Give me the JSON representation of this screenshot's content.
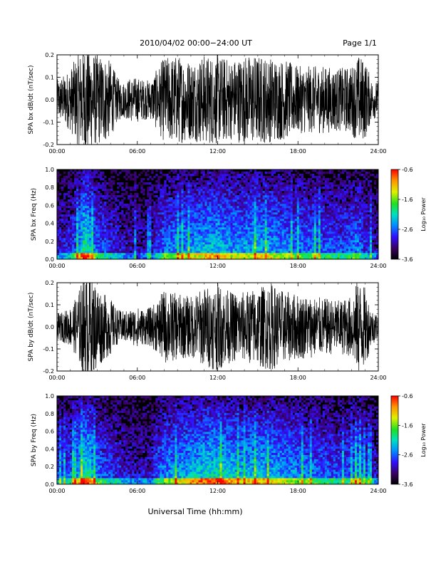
{
  "header": {
    "title": "2010/04/02  00:00−24:00 UT",
    "page": "Page 1/1"
  },
  "chart_data": [
    {
      "type": "line",
      "ylabel": "SPA bx dB/dt (nT/sec)",
      "xlim": [
        0,
        24
      ],
      "ylim": [
        -0.2,
        0.2
      ],
      "x_ticks": [
        "00:00",
        "06:00",
        "12:00",
        "18:00",
        "24:00"
      ],
      "y_ticks": [
        "-0.2",
        "-0.1",
        "0.0",
        "0.1",
        "0.2"
      ],
      "envelope": {
        "hours": [
          0,
          0.5,
          1,
          1.5,
          1.8,
          2.0,
          2.3,
          2.6,
          3.0,
          3.5,
          4.0,
          4.5,
          5.0,
          5.5,
          6.0,
          6.5,
          7.0,
          7.5,
          8.0,
          9.0,
          10.0,
          11.0,
          12.0,
          13.0,
          14.0,
          15.0,
          16.0,
          17.0,
          18.0,
          19.0,
          20.0,
          21.0,
          22.0,
          22.5,
          23.0,
          23.5,
          24.0
        ],
        "amplitude": [
          0.09,
          0.11,
          0.14,
          0.2,
          0.22,
          0.25,
          0.25,
          0.22,
          0.2,
          0.2,
          0.17,
          0.1,
          0.08,
          0.1,
          0.1,
          0.09,
          0.09,
          0.14,
          0.19,
          0.2,
          0.18,
          0.2,
          0.2,
          0.18,
          0.2,
          0.2,
          0.19,
          0.18,
          0.15,
          0.15,
          0.15,
          0.14,
          0.15,
          0.2,
          0.18,
          0.09,
          0.08
        ]
      },
      "color": "#000000"
    },
    {
      "type": "heatmap",
      "ylabel": "SPA bx Freq (Hz)",
      "xlim": [
        0,
        24
      ],
      "ylim": [
        0,
        1.0
      ],
      "x_ticks": [
        "00:00",
        "06:00",
        "12:00",
        "18:00",
        "24:00"
      ],
      "y_ticks": [
        "0.0",
        "0.2",
        "0.4",
        "0.6",
        "0.8",
        "1.0"
      ],
      "colorbar": {
        "label": "Log₁₀ Power",
        "range": [
          -3.6,
          -0.6
        ],
        "ticks": [
          "-0.6",
          "-1.6",
          "-2.6",
          "-3.6"
        ]
      },
      "activity_profile": {
        "hours": [
          0,
          0.5,
          1,
          1.5,
          2.0,
          2.3,
          2.6,
          3.0,
          4.0,
          5.0,
          6.0,
          7.0,
          7.5,
          8.0,
          9.0,
          10.0,
          11.0,
          12.0,
          13.0,
          14.0,
          15.0,
          16.0,
          17.0,
          18.0,
          19.0,
          20.0,
          21.0,
          22.0,
          22.5,
          23.0,
          24.0
        ],
        "level": [
          0.35,
          0.4,
          0.45,
          0.6,
          0.95,
          0.9,
          0.7,
          0.55,
          0.45,
          0.35,
          0.3,
          0.3,
          0.5,
          0.6,
          0.65,
          0.7,
          0.75,
          0.8,
          0.7,
          0.7,
          0.75,
          0.7,
          0.65,
          0.6,
          0.6,
          0.55,
          0.5,
          0.55,
          0.65,
          0.45,
          0.3
        ]
      }
    },
    {
      "type": "line",
      "ylabel": "SPA by dB/dt (nT/sec)",
      "xlim": [
        0,
        24
      ],
      "ylim": [
        -0.2,
        0.2
      ],
      "x_ticks": [
        "00:00",
        "06:00",
        "12:00",
        "18:00",
        "24:00"
      ],
      "y_ticks": [
        "-0.2",
        "-0.1",
        "0.0",
        "0.1",
        "0.2"
      ],
      "envelope": {
        "hours": [
          0,
          0.5,
          1,
          1.5,
          1.8,
          2.0,
          2.3,
          2.6,
          3.0,
          3.5,
          4.0,
          4.5,
          5.0,
          5.5,
          6.0,
          6.5,
          7.0,
          7.5,
          8.0,
          9.0,
          10.0,
          11.0,
          12.0,
          13.0,
          14.0,
          15.0,
          16.0,
          17.0,
          18.0,
          19.0,
          20.0,
          21.0,
          22.0,
          22.5,
          23.0,
          23.5,
          24.0
        ],
        "amplitude": [
          0.06,
          0.07,
          0.09,
          0.14,
          0.2,
          0.25,
          0.25,
          0.22,
          0.2,
          0.15,
          0.13,
          0.08,
          0.07,
          0.08,
          0.09,
          0.08,
          0.09,
          0.12,
          0.17,
          0.15,
          0.14,
          0.18,
          0.2,
          0.16,
          0.16,
          0.18,
          0.2,
          0.16,
          0.15,
          0.14,
          0.13,
          0.12,
          0.14,
          0.22,
          0.18,
          0.08,
          0.06
        ]
      },
      "color": "#000000"
    },
    {
      "type": "heatmap",
      "ylabel": "SPA by Freq (Hz)",
      "xlim": [
        0,
        24
      ],
      "ylim": [
        0,
        1.0
      ],
      "x_ticks": [
        "00:00",
        "06:00",
        "12:00",
        "18:00",
        "24:00"
      ],
      "y_ticks": [
        "0.0",
        "0.2",
        "0.4",
        "0.6",
        "0.8",
        "1.0"
      ],
      "xlabel": "Universal Time (hh:mm)",
      "colorbar": {
        "label": "Log₁₀ Power",
        "range": [
          -3.6,
          -0.6
        ],
        "ticks": [
          "-0.6",
          "-1.6",
          "-2.6",
          "-3.6"
        ]
      },
      "activity_profile": {
        "hours": [
          0,
          0.5,
          1,
          1.5,
          2.0,
          2.3,
          2.6,
          3.0,
          4.0,
          5.0,
          6.0,
          7.0,
          7.5,
          8.0,
          9.0,
          10.0,
          11.0,
          12.0,
          13.0,
          14.0,
          15.0,
          16.0,
          17.0,
          18.0,
          19.0,
          20.0,
          21.0,
          22.0,
          22.5,
          23.0,
          24.0
        ],
        "level": [
          0.45,
          0.5,
          0.55,
          0.7,
          0.95,
          0.95,
          0.8,
          0.6,
          0.5,
          0.4,
          0.35,
          0.35,
          0.55,
          0.65,
          0.7,
          0.8,
          0.85,
          0.9,
          0.8,
          0.75,
          0.8,
          0.75,
          0.7,
          0.65,
          0.6,
          0.55,
          0.5,
          0.55,
          0.7,
          0.5,
          0.35
        ]
      }
    }
  ]
}
